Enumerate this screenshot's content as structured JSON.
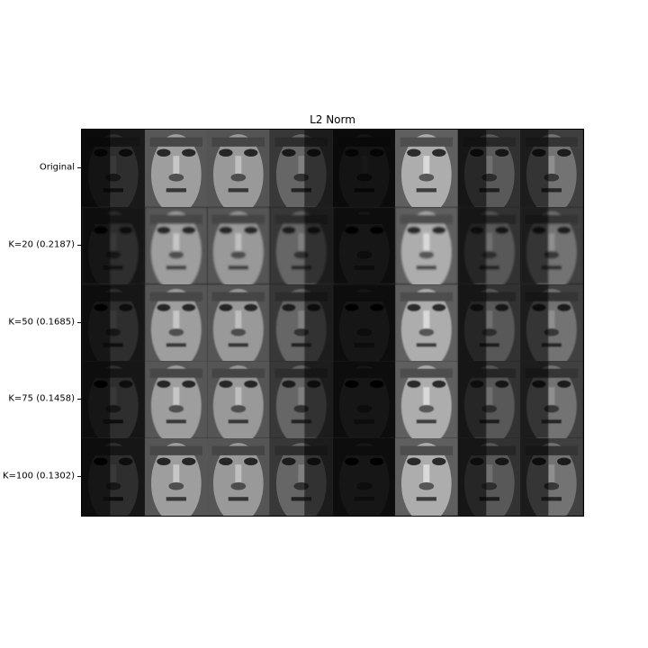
{
  "chart_data": {
    "type": "image-grid",
    "title": "L2 Norm",
    "row_labels": [
      "Original",
      "K=20 (0.2187)",
      "K=50 (0.1685)",
      "K=75 (0.1458)",
      "K=100 (0.1302)"
    ],
    "reconstruction_error": [
      null,
      0.2187,
      0.1685,
      0.1458,
      0.1302
    ],
    "columns": 8,
    "faces": [
      {
        "brightness": 0.18,
        "lighting": "dark-left"
      },
      {
        "brightness": 0.62,
        "lighting": "frontal"
      },
      {
        "brightness": 0.6,
        "lighting": "frontal"
      },
      {
        "brightness": 0.4,
        "lighting": "side-right"
      },
      {
        "brightness": 0.12,
        "lighting": "very-dark"
      },
      {
        "brightness": 0.68,
        "lighting": "bright"
      },
      {
        "brightness": 0.35,
        "lighting": "shadow-left"
      },
      {
        "brightness": 0.45,
        "lighting": "shadow-left"
      }
    ],
    "colormap": "gray"
  }
}
